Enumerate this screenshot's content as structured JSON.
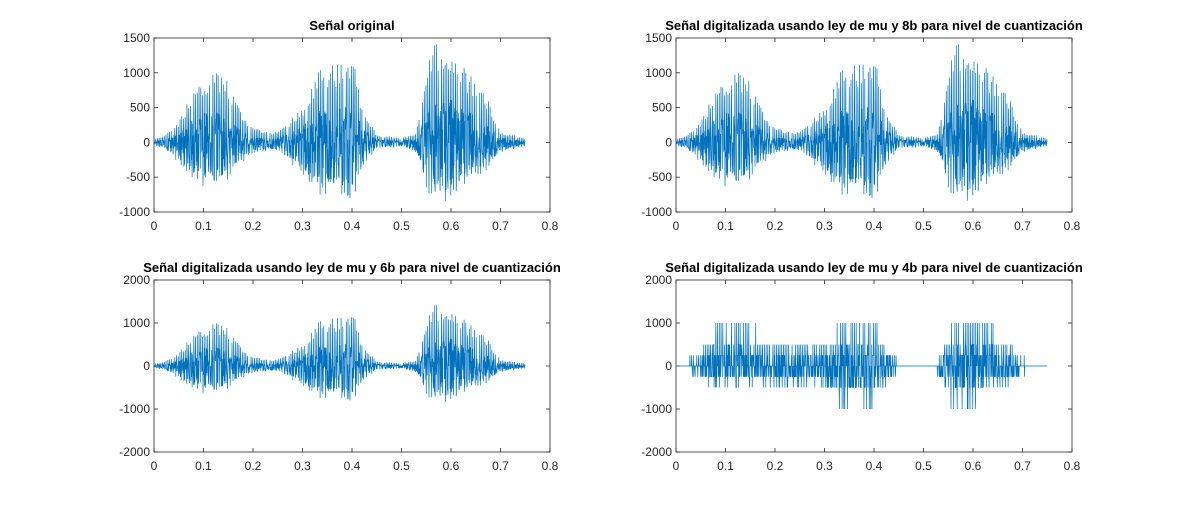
{
  "figure": {
    "background": "#ffffff",
    "line_color": "#0072BD"
  },
  "chart_data": [
    {
      "type": "line",
      "title": "Señal original",
      "xlim": [
        0,
        0.8
      ],
      "ylim": [
        -1000,
        1500
      ],
      "xticks": [
        "0",
        "0.1",
        "0.2",
        "0.3",
        "0.4",
        "0.5",
        "0.6",
        "0.7",
        "0.8"
      ],
      "yticks": [
        "-1000",
        "-500",
        "0",
        "500",
        "1000",
        "1500"
      ],
      "xlabel": "",
      "ylabel": "",
      "x_end": 0.75,
      "envelope": [
        [
          0,
          50
        ],
        [
          0.02,
          100
        ],
        [
          0.05,
          300
        ],
        [
          0.08,
          750
        ],
        [
          0.1,
          950
        ],
        [
          0.13,
          1000
        ],
        [
          0.15,
          900
        ],
        [
          0.18,
          350
        ],
        [
          0.2,
          200
        ],
        [
          0.25,
          150
        ],
        [
          0.3,
          500
        ],
        [
          0.33,
          1050
        ],
        [
          0.38,
          1150
        ],
        [
          0.4,
          1350
        ],
        [
          0.42,
          500
        ],
        [
          0.45,
          120
        ],
        [
          0.5,
          60
        ],
        [
          0.53,
          150
        ],
        [
          0.56,
          1450
        ],
        [
          0.6,
          1350
        ],
        [
          0.63,
          1050
        ],
        [
          0.67,
          700
        ],
        [
          0.7,
          150
        ],
        [
          0.75,
          60
        ]
      ],
      "neg_envelope": [
        [
          0,
          -50
        ],
        [
          0.02,
          -100
        ],
        [
          0.05,
          -300
        ],
        [
          0.08,
          -550
        ],
        [
          0.1,
          -650
        ],
        [
          0.13,
          -700
        ],
        [
          0.15,
          -600
        ],
        [
          0.18,
          -300
        ],
        [
          0.2,
          -150
        ],
        [
          0.25,
          -120
        ],
        [
          0.3,
          -500
        ],
        [
          0.33,
          -750
        ],
        [
          0.38,
          -850
        ],
        [
          0.4,
          -1000
        ],
        [
          0.42,
          -400
        ],
        [
          0.45,
          -100
        ],
        [
          0.5,
          -60
        ],
        [
          0.53,
          -150
        ],
        [
          0.56,
          -900
        ],
        [
          0.6,
          -850
        ],
        [
          0.63,
          -650
        ],
        [
          0.67,
          -450
        ],
        [
          0.7,
          -150
        ],
        [
          0.75,
          -50
        ]
      ],
      "quant_levels": []
    },
    {
      "type": "line",
      "title": "Señal digitalizada usando ley de mu y 8b para nivel de cuantización",
      "xlim": [
        0,
        0.8
      ],
      "ylim": [
        -1000,
        1500
      ],
      "xticks": [
        "0",
        "0.1",
        "0.2",
        "0.3",
        "0.4",
        "0.5",
        "0.6",
        "0.7",
        "0.8"
      ],
      "yticks": [
        "-1000",
        "-500",
        "0",
        "500",
        "1000",
        "1500"
      ],
      "xlabel": "",
      "ylabel": "",
      "x_end": 0.75,
      "envelope": [
        [
          0,
          50
        ],
        [
          0.02,
          100
        ],
        [
          0.05,
          300
        ],
        [
          0.08,
          750
        ],
        [
          0.1,
          950
        ],
        [
          0.13,
          1000
        ],
        [
          0.15,
          900
        ],
        [
          0.18,
          350
        ],
        [
          0.2,
          200
        ],
        [
          0.25,
          150
        ],
        [
          0.3,
          500
        ],
        [
          0.33,
          1050
        ],
        [
          0.38,
          1150
        ],
        [
          0.4,
          1350
        ],
        [
          0.42,
          500
        ],
        [
          0.45,
          120
        ],
        [
          0.5,
          60
        ],
        [
          0.53,
          150
        ],
        [
          0.56,
          1450
        ],
        [
          0.6,
          1350
        ],
        [
          0.63,
          1050
        ],
        [
          0.67,
          700
        ],
        [
          0.7,
          150
        ],
        [
          0.75,
          60
        ]
      ],
      "neg_envelope": [
        [
          0,
          -50
        ],
        [
          0.02,
          -100
        ],
        [
          0.05,
          -300
        ],
        [
          0.08,
          -550
        ],
        [
          0.1,
          -650
        ],
        [
          0.13,
          -700
        ],
        [
          0.15,
          -600
        ],
        [
          0.18,
          -300
        ],
        [
          0.2,
          -150
        ],
        [
          0.25,
          -120
        ],
        [
          0.3,
          -500
        ],
        [
          0.33,
          -750
        ],
        [
          0.38,
          -850
        ],
        [
          0.4,
          -1000
        ],
        [
          0.42,
          -400
        ],
        [
          0.45,
          -100
        ],
        [
          0.5,
          -60
        ],
        [
          0.53,
          -150
        ],
        [
          0.56,
          -900
        ],
        [
          0.6,
          -850
        ],
        [
          0.63,
          -650
        ],
        [
          0.67,
          -450
        ],
        [
          0.7,
          -150
        ],
        [
          0.75,
          -50
        ]
      ],
      "quant_levels": []
    },
    {
      "type": "line",
      "title": "Señal digitalizada usando ley de mu y 6b para nivel de cuantización",
      "xlim": [
        0,
        0.8
      ],
      "ylim": [
        -2000,
        2000
      ],
      "xticks": [
        "0",
        "0.1",
        "0.2",
        "0.3",
        "0.4",
        "0.5",
        "0.6",
        "0.7",
        "0.8"
      ],
      "yticks": [
        "-2000",
        "-1000",
        "0",
        "1000",
        "2000"
      ],
      "xlabel": "",
      "ylabel": "",
      "x_end": 0.75,
      "envelope": [
        [
          0,
          50
        ],
        [
          0.02,
          100
        ],
        [
          0.05,
          300
        ],
        [
          0.08,
          750
        ],
        [
          0.1,
          950
        ],
        [
          0.13,
          1000
        ],
        [
          0.15,
          900
        ],
        [
          0.18,
          350
        ],
        [
          0.2,
          200
        ],
        [
          0.25,
          150
        ],
        [
          0.3,
          500
        ],
        [
          0.33,
          1050
        ],
        [
          0.38,
          1150
        ],
        [
          0.4,
          1400
        ],
        [
          0.42,
          500
        ],
        [
          0.45,
          120
        ],
        [
          0.5,
          60
        ],
        [
          0.53,
          150
        ],
        [
          0.56,
          1450
        ],
        [
          0.6,
          1400
        ],
        [
          0.63,
          1050
        ],
        [
          0.67,
          700
        ],
        [
          0.7,
          150
        ],
        [
          0.75,
          60
        ]
      ],
      "neg_envelope": [
        [
          0,
          -50
        ],
        [
          0.02,
          -100
        ],
        [
          0.05,
          -300
        ],
        [
          0.08,
          -550
        ],
        [
          0.1,
          -650
        ],
        [
          0.13,
          -700
        ],
        [
          0.15,
          -600
        ],
        [
          0.18,
          -300
        ],
        [
          0.2,
          -150
        ],
        [
          0.25,
          -120
        ],
        [
          0.3,
          -500
        ],
        [
          0.33,
          -750
        ],
        [
          0.38,
          -850
        ],
        [
          0.4,
          -1000
        ],
        [
          0.42,
          -400
        ],
        [
          0.45,
          -100
        ],
        [
          0.5,
          -60
        ],
        [
          0.53,
          -150
        ],
        [
          0.56,
          -900
        ],
        [
          0.6,
          -850
        ],
        [
          0.63,
          -650
        ],
        [
          0.67,
          -450
        ],
        [
          0.7,
          -150
        ],
        [
          0.75,
          -50
        ]
      ],
      "quant_levels": []
    },
    {
      "type": "line",
      "title": "Señal digitalizada usando ley de mu y 4b para nivel de cuantización",
      "xlim": [
        0,
        0.8
      ],
      "ylim": [
        -2000,
        2000
      ],
      "xticks": [
        "0",
        "0.1",
        "0.2",
        "0.3",
        "0.4",
        "0.5",
        "0.6",
        "0.7",
        "0.8"
      ],
      "yticks": [
        "-2000",
        "-1000",
        "0",
        "1000",
        "2000"
      ],
      "xlabel": "",
      "ylabel": "",
      "x_end": 0.75,
      "envelope": [
        [
          0,
          50
        ],
        [
          0.02,
          100
        ],
        [
          0.05,
          300
        ],
        [
          0.08,
          1000
        ],
        [
          0.1,
          1000
        ],
        [
          0.13,
          1000
        ],
        [
          0.15,
          1000
        ],
        [
          0.18,
          500
        ],
        [
          0.2,
          500
        ],
        [
          0.25,
          500
        ],
        [
          0.3,
          500
        ],
        [
          0.33,
          1000
        ],
        [
          0.38,
          1000
        ],
        [
          0.4,
          1000
        ],
        [
          0.42,
          500
        ],
        [
          0.45,
          120
        ],
        [
          0.5,
          60
        ],
        [
          0.53,
          150
        ],
        [
          0.56,
          1000
        ],
        [
          0.6,
          1000
        ],
        [
          0.63,
          1000
        ],
        [
          0.67,
          500
        ],
        [
          0.7,
          150
        ],
        [
          0.75,
          60
        ]
      ],
      "neg_envelope": [
        [
          0,
          -50
        ],
        [
          0.02,
          -100
        ],
        [
          0.05,
          -300
        ],
        [
          0.08,
          -500
        ],
        [
          0.1,
          -500
        ],
        [
          0.13,
          -500
        ],
        [
          0.15,
          -500
        ],
        [
          0.18,
          -500
        ],
        [
          0.2,
          -500
        ],
        [
          0.25,
          -500
        ],
        [
          0.3,
          -500
        ],
        [
          0.33,
          -1000
        ],
        [
          0.38,
          -1000
        ],
        [
          0.4,
          -1000
        ],
        [
          0.42,
          -500
        ],
        [
          0.45,
          -100
        ],
        [
          0.5,
          -60
        ],
        [
          0.53,
          -150
        ],
        [
          0.56,
          -1000
        ],
        [
          0.6,
          -1000
        ],
        [
          0.63,
          -500
        ],
        [
          0.67,
          -500
        ],
        [
          0.7,
          -150
        ],
        [
          0.75,
          -50
        ]
      ],
      "quant_levels": [
        -1000,
        -500,
        -250,
        0,
        250,
        500,
        1000
      ]
    }
  ]
}
